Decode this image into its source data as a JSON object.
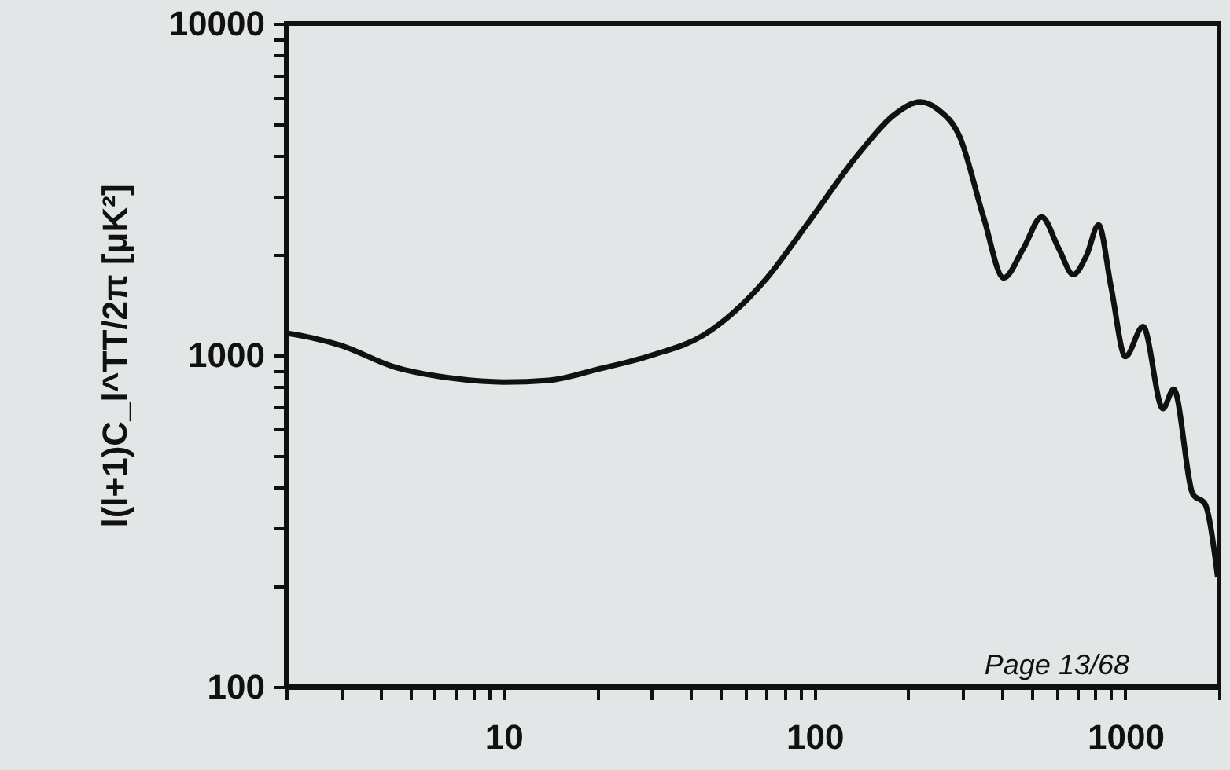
{
  "chart_data": {
    "type": "line",
    "ylabel": "l(l+1)C_l^TT/2π [μK²]",
    "log": "xy",
    "grid": false,
    "xlim": [
      2,
      2000
    ],
    "ylim": [
      100,
      10000
    ],
    "xticks": [
      {
        "value": 2,
        "label": null
      },
      {
        "value": 3,
        "label": null
      },
      {
        "value": 4,
        "label": null
      },
      {
        "value": 5,
        "label": null
      },
      {
        "value": 6,
        "label": null
      },
      {
        "value": 7,
        "label": null
      },
      {
        "value": 8,
        "label": null
      },
      {
        "value": 9,
        "label": null
      },
      10,
      {
        "value": 20,
        "label": null
      },
      {
        "value": 30,
        "label": null
      },
      {
        "value": 40,
        "label": null
      },
      {
        "value": 50,
        "label": null
      },
      {
        "value": 60,
        "label": null
      },
      {
        "value": 70,
        "label": null
      },
      {
        "value": 80,
        "label": null
      },
      {
        "value": 90,
        "label": null
      },
      100,
      {
        "value": 200,
        "label": null
      },
      {
        "value": 300,
        "label": null
      },
      {
        "value": 400,
        "label": null
      },
      {
        "value": 500,
        "label": null
      },
      {
        "value": 600,
        "label": null
      },
      {
        "value": 700,
        "label": null
      },
      {
        "value": 800,
        "label": null
      },
      {
        "value": 900,
        "label": null
      },
      1000,
      {
        "value": 2000,
        "label": null
      }
    ],
    "yticks": [
      100,
      {
        "value": 200,
        "label": null
      },
      {
        "value": 300,
        "label": null
      },
      {
        "value": 400,
        "label": null
      },
      {
        "value": 500,
        "label": null
      },
      {
        "value": 600,
        "label": null
      },
      {
        "value": 700,
        "label": null
      },
      {
        "value": 800,
        "label": null
      },
      {
        "value": 900,
        "label": null
      },
      1000,
      {
        "value": 2000,
        "label": null
      },
      {
        "value": 3000,
        "label": null
      },
      {
        "value": 4000,
        "label": null
      },
      {
        "value": 5000,
        "label": null
      },
      {
        "value": 6000,
        "label": null
      },
      {
        "value": 7000,
        "label": null
      },
      {
        "value": 8000,
        "label": null
      },
      {
        "value": 9000,
        "label": null
      },
      10000
    ],
    "series": [
      {
        "color": "#111111",
        "x": [
          2,
          2.4,
          3,
          4.4,
          7,
          10,
          14,
          20,
          30,
          44,
          70,
          94,
          140,
          180,
          219,
          250,
          293,
          350,
          406,
          470,
          538,
          610,
          680,
          750,
          820,
          900,
          1000,
          1140,
          1320,
          1430,
          1650,
          1800,
          1980
        ],
        "values": [
          1165,
          1130,
          1070,
          925,
          850,
          830,
          840,
          906,
          1000,
          1150,
          1700,
          2460,
          4090,
          5300,
          5800,
          5500,
          4560,
          2600,
          1710,
          2100,
          2610,
          2100,
          1750,
          2000,
          2470,
          1600,
          990,
          1220,
          690,
          790,
          380,
          357,
          215
        ]
      }
    ],
    "annotations": [
      "Page 13/68"
    ]
  }
}
